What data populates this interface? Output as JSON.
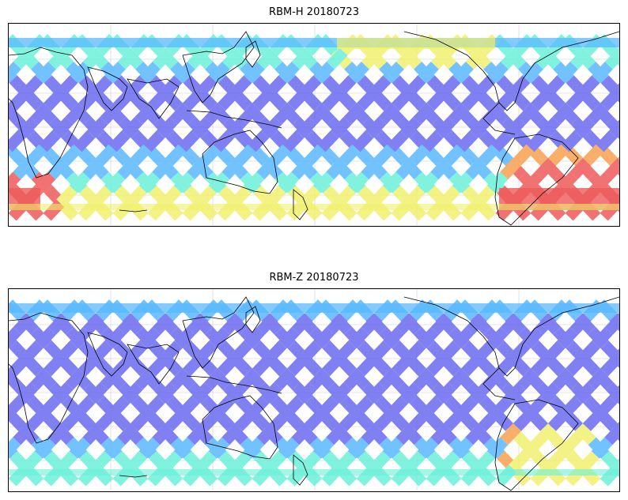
{
  "panels": [
    {
      "title": "RBM-H 20180723",
      "hotspots": "high"
    },
    {
      "title": "RBM-Z 20180723",
      "hotspots": "low"
    }
  ],
  "colors": {
    "low": "#6a6af0",
    "midlow": "#5ab8ff",
    "mid": "#6af0d8",
    "midhigh": "#f0f070",
    "high": "#f8a050",
    "max": "#ee5a5a",
    "coast": "#000000",
    "grid": "#cccccc"
  }
}
